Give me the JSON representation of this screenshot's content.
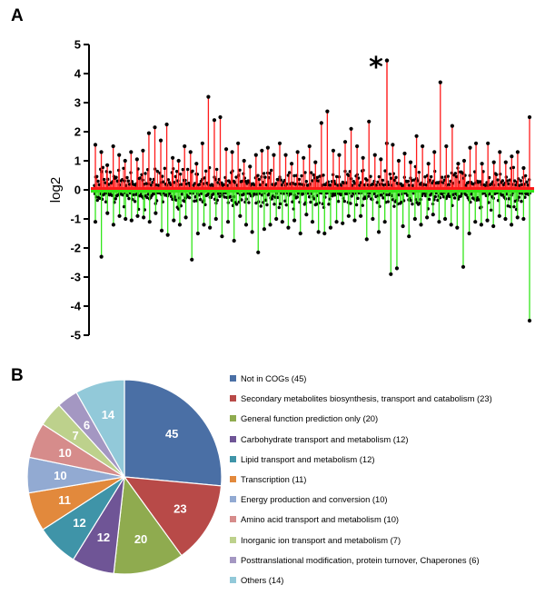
{
  "panel_labels": {
    "a": "A",
    "b": "B"
  },
  "chart_data": [
    {
      "type": "lollipop",
      "panel": "A",
      "ylabel": "log2",
      "yticks": [
        5,
        4,
        3,
        2,
        1,
        0,
        -1,
        -2,
        -3,
        -4,
        -5
      ],
      "ylim": [
        -5,
        5
      ],
      "annotation": "*",
      "colors": {
        "positive": "#ff1a1a",
        "negative": "#33e61a",
        "point": "#000000",
        "axis": "#000000"
      },
      "positive_values": [
        1.55,
        1.3,
        0.85,
        1.5,
        1.2,
        1.0,
        1.3,
        1.05,
        1.35,
        1.95,
        2.15,
        1.7,
        2.25,
        1.1,
        1.0,
        1.5,
        1.3,
        0.9,
        1.6,
        3.2,
        2.4,
        2.5,
        1.4,
        1.3,
        1.6,
        1.0,
        0.8,
        1.2,
        1.35,
        1.45,
        1.2,
        1.6,
        1.2,
        0.9,
        1.3,
        1.1,
        1.5,
        0.95,
        2.3,
        2.7,
        1.35,
        1.2,
        1.65,
        2.1,
        1.5,
        1.1,
        2.35,
        1.2,
        1.05,
        1.6,
        1.55,
        1.0,
        1.25,
        0.95,
        1.85,
        1.5,
        0.9,
        1.3,
        3.7,
        1.5,
        2.2,
        0.9,
        1.0,
        1.45,
        1.6,
        0.9,
        1.6,
        0.95,
        1.3,
        0.95,
        1.15,
        1.3,
        0.75,
        2.5
      ],
      "negative_values": [
        -1.1,
        -2.3,
        -0.8,
        -1.2,
        -0.9,
        -1.0,
        -1.05,
        -0.9,
        -0.95,
        -1.1,
        -0.8,
        -1.4,
        -1.55,
        -1.05,
        -1.2,
        -0.95,
        -2.4,
        -1.5,
        -1.2,
        -1.3,
        -1.0,
        -1.6,
        -1.1,
        -1.75,
        -0.9,
        -1.2,
        -1.45,
        -2.15,
        -1.35,
        -1.2,
        -1.0,
        -1.1,
        -1.3,
        -1.05,
        -1.5,
        -0.85,
        -1.1,
        -1.45,
        -1.5,
        -1.3,
        -1.1,
        -1.15,
        -0.9,
        -1.05,
        -0.9,
        -1.7,
        -1.0,
        -1.45,
        -1.1,
        -2.9,
        -2.7,
        -1.25,
        -1.6,
        -1.0,
        -1.2,
        -0.95,
        -0.85,
        -1.1,
        -1.0,
        -1.2,
        -1.3,
        -2.65,
        -1.5,
        -1.1,
        -1.2,
        -1.05,
        -1.25,
        -0.9,
        -1.0,
        -1.2,
        -0.95,
        -1.0,
        -4.5
      ]
    },
    {
      "type": "pie",
      "panel": "B",
      "slices": [
        {
          "label": "Not in COGs  (45)",
          "value": 45,
          "display": "45",
          "color": "#4a6fa5"
        },
        {
          "label": "Secondary metabolites  biosynthesis,  transport and catabolism  (23)",
          "value": 23,
          "display": "23",
          "color": "#b84a48"
        },
        {
          "label": "General function prediction only  (20)",
          "value": 20,
          "display": "20",
          "color": "#8fab4f"
        },
        {
          "label": "Carbohydrate transport and metabolism  (12)",
          "value": 12,
          "display": "12",
          "color": "#6f5596"
        },
        {
          "label": "Lipid transport and metabolism  (12)",
          "value": 12,
          "display": "12",
          "color": "#3f94a8"
        },
        {
          "label": "Transcription  (11)",
          "value": 11,
          "display": "11",
          "color": "#e2893c"
        },
        {
          "label": "Energy production and conversion  (10)",
          "value": 10,
          "display": "10",
          "color": "#92aad2"
        },
        {
          "label": "Amino  acid transport and metabolism  (10)",
          "value": 10,
          "display": "10",
          "color": "#d68c8b"
        },
        {
          "label": "Inorganic ion transport and metabolism  (7)",
          "value": 7,
          "display": "7",
          "color": "#bdd18c"
        },
        {
          "label": "Posttranslational modification,  protein turnover, Chaperones  (6)",
          "value": 6,
          "display": "6",
          "color": "#a497c2"
        },
        {
          "label": "Others  (14)",
          "value": 14,
          "display": "14",
          "color": "#92c9d9"
        }
      ]
    }
  ]
}
